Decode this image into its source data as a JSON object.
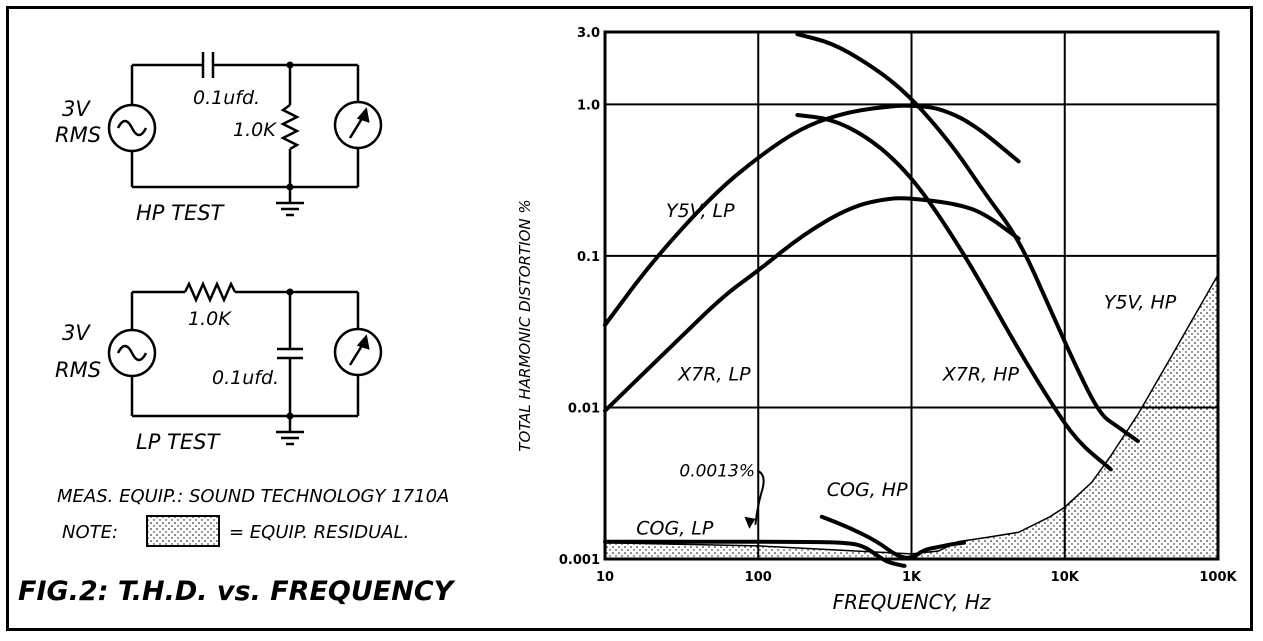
{
  "figure_caption": "FIG.2: T.H.D. vs. FREQUENCY",
  "hp_test": {
    "source_label_1": "3V",
    "source_label_2": "RMS",
    "capacitor_label": "0.1ufd.",
    "resistor_label": "1.0K",
    "title": "HP TEST"
  },
  "lp_test": {
    "source_label_1": "3V",
    "source_label_2": "RMS",
    "resistor_label": "1.0K",
    "capacitor_label": "0.1ufd.",
    "title": "LP TEST"
  },
  "meas_equip": "MEAS. EQUIP.: SOUND TECHNOLOGY 1710A",
  "note_label": "NOTE:",
  "note_text": "= EQUIP. RESIDUAL.",
  "chart_data": {
    "type": "line",
    "title": "",
    "xlabel": "FREQUENCY,   Hz",
    "ylabel": "TOTAL HARMONIC DISTORTION  %",
    "x_scale": "log",
    "y_scale": "log",
    "xlim": [
      10,
      100000
    ],
    "ylim": [
      0.001,
      3.0
    ],
    "x_ticks": [
      10,
      100,
      1000,
      10000,
      100000
    ],
    "x_tick_labels": [
      "10",
      "100",
      "1K",
      "10K",
      "100K"
    ],
    "y_ticks": [
      0.001,
      0.01,
      0.1,
      1.0,
      3.0
    ],
    "y_tick_labels": [
      "0.001",
      "0.01",
      "0.1",
      "1.0",
      "3.0"
    ],
    "grid": true,
    "series": [
      {
        "name": "Y5V, LP",
        "label_at": [
          25,
          0.18
        ],
        "points": [
          [
            10,
            0.035
          ],
          [
            20,
            0.09
          ],
          [
            50,
            0.25
          ],
          [
            100,
            0.45
          ],
          [
            200,
            0.72
          ],
          [
            400,
            0.9
          ],
          [
            800,
            0.98
          ],
          [
            1000,
            0.98
          ],
          [
            1500,
            0.95
          ],
          [
            2500,
            0.75
          ],
          [
            5000,
            0.42
          ]
        ]
      },
      {
        "name": "X7R, LP",
        "label_at": [
          30,
          0.015
        ],
        "points": [
          [
            10,
            0.0095
          ],
          [
            30,
            0.028
          ],
          [
            60,
            0.055
          ],
          [
            100,
            0.08
          ],
          [
            200,
            0.14
          ],
          [
            400,
            0.21
          ],
          [
            700,
            0.24
          ],
          [
            1000,
            0.24
          ],
          [
            2000,
            0.22
          ],
          [
            3000,
            0.19
          ],
          [
            5000,
            0.13
          ]
        ]
      },
      {
        "name": "Y5V, HP",
        "label_at": [
          18000,
          0.045
        ],
        "points": [
          [
            180,
            2.9
          ],
          [
            300,
            2.55
          ],
          [
            500,
            1.9
          ],
          [
            800,
            1.35
          ],
          [
            1200,
            0.9
          ],
          [
            2000,
            0.48
          ],
          [
            3000,
            0.26
          ],
          [
            5000,
            0.13
          ],
          [
            8000,
            0.045
          ],
          [
            12000,
            0.018
          ],
          [
            17000,
            0.009
          ],
          [
            22000,
            0.0075
          ],
          [
            30000,
            0.006
          ]
        ]
      },
      {
        "name": "X7R, HP",
        "label_at": [
          1600,
          0.015
        ],
        "points": [
          [
            180,
            0.85
          ],
          [
            300,
            0.8
          ],
          [
            500,
            0.62
          ],
          [
            800,
            0.42
          ],
          [
            1200,
            0.26
          ],
          [
            2000,
            0.12
          ],
          [
            3000,
            0.06
          ],
          [
            5000,
            0.024
          ],
          [
            8000,
            0.011
          ],
          [
            12000,
            0.006
          ],
          [
            20000,
            0.0039
          ]
        ]
      },
      {
        "name": "COG, LP",
        "label_at": [
          16,
          0.00145
        ],
        "points": [
          [
            10,
            0.0013
          ],
          [
            200,
            0.0013
          ],
          [
            400,
            0.00128
          ],
          [
            500,
            0.0012
          ],
          [
            600,
            0.00105
          ],
          [
            700,
            0.00095
          ],
          [
            900,
            0.0009
          ]
        ]
      },
      {
        "name": "COG, HP",
        "label_at": [
          280,
          0.0026
        ],
        "points": [
          [
            260,
            0.0019
          ],
          [
            400,
            0.0016
          ],
          [
            600,
            0.0013
          ],
          [
            800,
            0.00105
          ],
          [
            1000,
            0.001
          ],
          [
            1200,
            0.00115
          ],
          [
            1500,
            0.0012
          ],
          [
            1800,
            0.00125
          ],
          [
            2200,
            0.00128
          ]
        ]
      }
    ],
    "residual_region": {
      "name": "EQUIP. RESIDUAL",
      "points": [
        [
          10,
          0.00128
        ],
        [
          100,
          0.00122
        ],
        [
          500,
          0.00112
        ],
        [
          1000,
          0.00108
        ],
        [
          1500,
          0.00113
        ],
        [
          2000,
          0.0013
        ],
        [
          3000,
          0.00138
        ],
        [
          5000,
          0.0015
        ],
        [
          8000,
          0.0019
        ],
        [
          10000,
          0.0022
        ],
        [
          15000,
          0.0032
        ],
        [
          20000,
          0.0048
        ],
        [
          30000,
          0.009
        ],
        [
          50000,
          0.022
        ],
        [
          70000,
          0.04
        ],
        [
          100000,
          0.075
        ]
      ]
    },
    "annotations": [
      {
        "text": "0.0013%",
        "points_to": [
          200,
          0.0013
        ]
      }
    ]
  }
}
